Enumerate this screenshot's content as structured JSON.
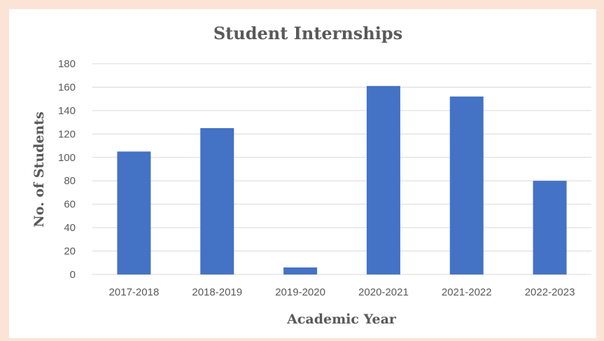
{
  "chart_data": {
    "type": "bar",
    "title": "Student Internships",
    "xlabel": "Academic Year",
    "ylabel": "No. of Students",
    "categories": [
      "2017-2018",
      "2018-2019",
      "2019-2020",
      "2020-2021",
      "2021-2022",
      "2022-2023"
    ],
    "values": [
      105,
      125,
      6,
      161,
      152,
      80
    ],
    "ylim": [
      0,
      180
    ],
    "yticks": [
      0,
      20,
      40,
      60,
      80,
      100,
      120,
      140,
      160,
      180
    ],
    "grid": true,
    "legend": "none",
    "colors": {
      "bar": "#4472c4",
      "background": "#fbe3d6"
    }
  }
}
